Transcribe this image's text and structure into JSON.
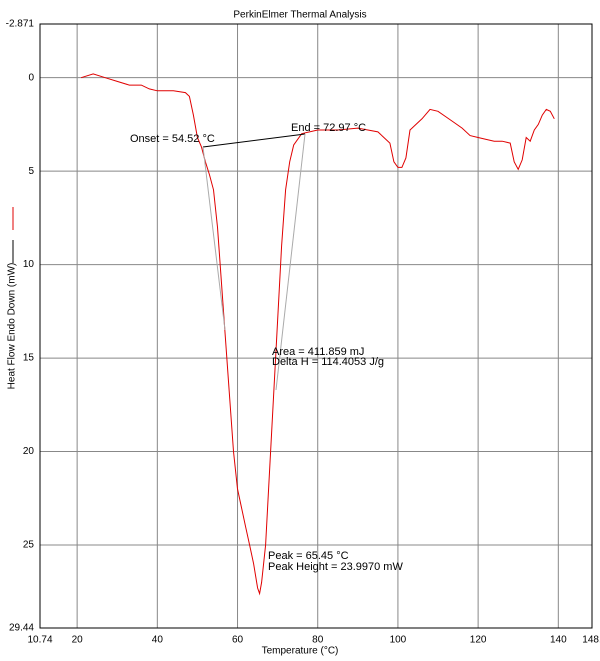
{
  "chart_data": {
    "type": "line",
    "title": "PerkinElmer Thermal Analysis",
    "xlabel": "Temperature (°C)",
    "ylabel": "Heat Flow Endo Down (mW)",
    "xlim": [
      10.74,
      148.4
    ],
    "ylim": [
      -2.871,
      29.44
    ],
    "y_inverted": true,
    "xticks": [
      10.74,
      20,
      40,
      60,
      80,
      100,
      120,
      140,
      {
        "value": 148.4,
        "label": "148."
      }
    ],
    "yticks": [
      -2.871,
      0,
      5,
      10,
      15,
      20,
      25,
      29.44
    ],
    "grid": true,
    "annotations": [
      "Onset = 54.52 °C",
      "End = 72.97 °C",
      "Area = 411.859 mJ",
      "Delta H = 114.4053 J/g",
      "Peak = 65.45 °C",
      "Peak Height = 23.9970 mW"
    ],
    "series": [
      {
        "color": "#e00000",
        "x": [
          21,
          24,
          27,
          30,
          33,
          36,
          38,
          40,
          44,
          47,
          48,
          49,
          50,
          51,
          52,
          53,
          54,
          55,
          56,
          57,
          58,
          59,
          60,
          61,
          62,
          63,
          64,
          65,
          65.5,
          66,
          67,
          68,
          69,
          70,
          71,
          72,
          73,
          74,
          76,
          80,
          85,
          90,
          95,
          98,
          99,
          100,
          101,
          102,
          103,
          104,
          106,
          108,
          110,
          112,
          114,
          116,
          118,
          120,
          122,
          124,
          126,
          128,
          129,
          130,
          131,
          132,
          133,
          134,
          135,
          136,
          137,
          138,
          139
        ],
        "values": [
          0,
          -0.2,
          0,
          0.2,
          0.4,
          0.4,
          0.6,
          0.7,
          0.7,
          0.8,
          1.0,
          2,
          3.2,
          3.7,
          4.5,
          5.2,
          6,
          8,
          11,
          14,
          17,
          20,
          22,
          23,
          24,
          25,
          26,
          27.3,
          27.6,
          27,
          25,
          21,
          17,
          13,
          9,
          6,
          4.5,
          3.6,
          3.0,
          2.8,
          2.8,
          2.7,
          2.9,
          3.5,
          4.5,
          4.8,
          4.8,
          4.3,
          2.8,
          2.6,
          2.2,
          1.7,
          1.8,
          2.1,
          2.4,
          2.7,
          3.1,
          3.2,
          3.3,
          3.4,
          3.4,
          3.5,
          4.5,
          4.9,
          4.4,
          3.2,
          3.4,
          2.8,
          2.5,
          2.0,
          1.7,
          1.8,
          2.2
        ]
      }
    ]
  }
}
